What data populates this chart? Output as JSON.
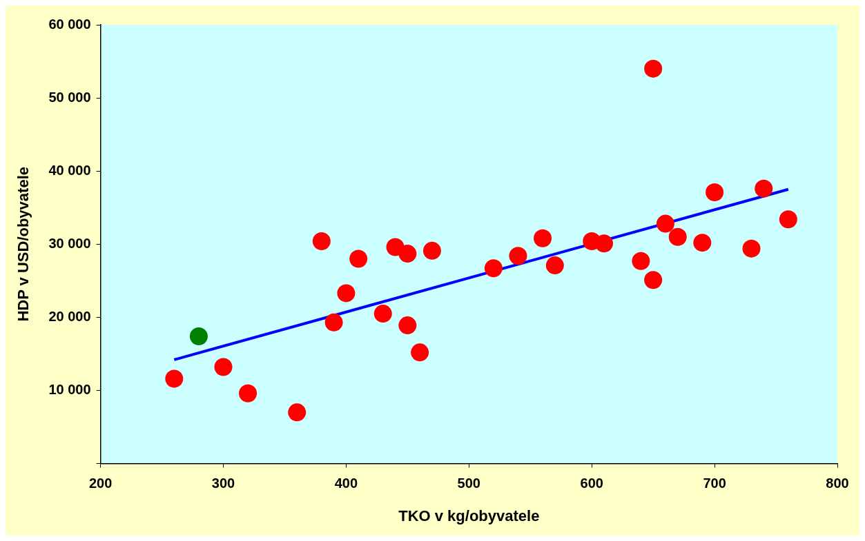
{
  "chart_data": {
    "type": "scatter",
    "xlabel": "TKO v kg/obyvatele",
    "ylabel": "HDP v USD/obyvatele",
    "xlim": [
      200,
      800
    ],
    "xticks": [
      200,
      300,
      400,
      500,
      600,
      700,
      800
    ],
    "ylim": [
      0,
      60000
    ],
    "yticks": [
      {
        "value": 0,
        "label": null
      },
      {
        "value": 10000,
        "label": "10 000"
      },
      {
        "value": 20000,
        "label": "20 000"
      },
      {
        "value": 30000,
        "label": "30 000"
      },
      {
        "value": 40000,
        "label": "40 000"
      },
      {
        "value": 50000,
        "label": "50 000"
      },
      {
        "value": 60000,
        "label": "60 000"
      }
    ],
    "grid": false,
    "legend": false,
    "marker": "circle",
    "series": [
      {
        "type": "scatter",
        "color": "#ff0000",
        "x": [
          260,
          300,
          320,
          360,
          380,
          390,
          400,
          410,
          430,
          440,
          450,
          450,
          460,
          470,
          520,
          540,
          560,
          570,
          600,
          610,
          640,
          650,
          650,
          660,
          670,
          690,
          700,
          730,
          740,
          760
        ],
        "values": [
          11600,
          13200,
          9600,
          7000,
          30400,
          19300,
          23300,
          28000,
          20500,
          29600,
          28700,
          18900,
          15200,
          29100,
          26700,
          28400,
          30800,
          27100,
          30400,
          30100,
          27700,
          54000,
          25100,
          32800,
          31000,
          30200,
          37100,
          29400,
          37600,
          33400
        ]
      },
      {
        "type": "scatter",
        "color": "#008000",
        "x": [
          280
        ],
        "values": [
          17400
        ]
      },
      {
        "type": "line",
        "color": "#0000ff",
        "marker": "none",
        "line_style": "solid",
        "x": [
          260,
          760
        ],
        "values": [
          14200,
          37500
        ]
      }
    ]
  }
}
